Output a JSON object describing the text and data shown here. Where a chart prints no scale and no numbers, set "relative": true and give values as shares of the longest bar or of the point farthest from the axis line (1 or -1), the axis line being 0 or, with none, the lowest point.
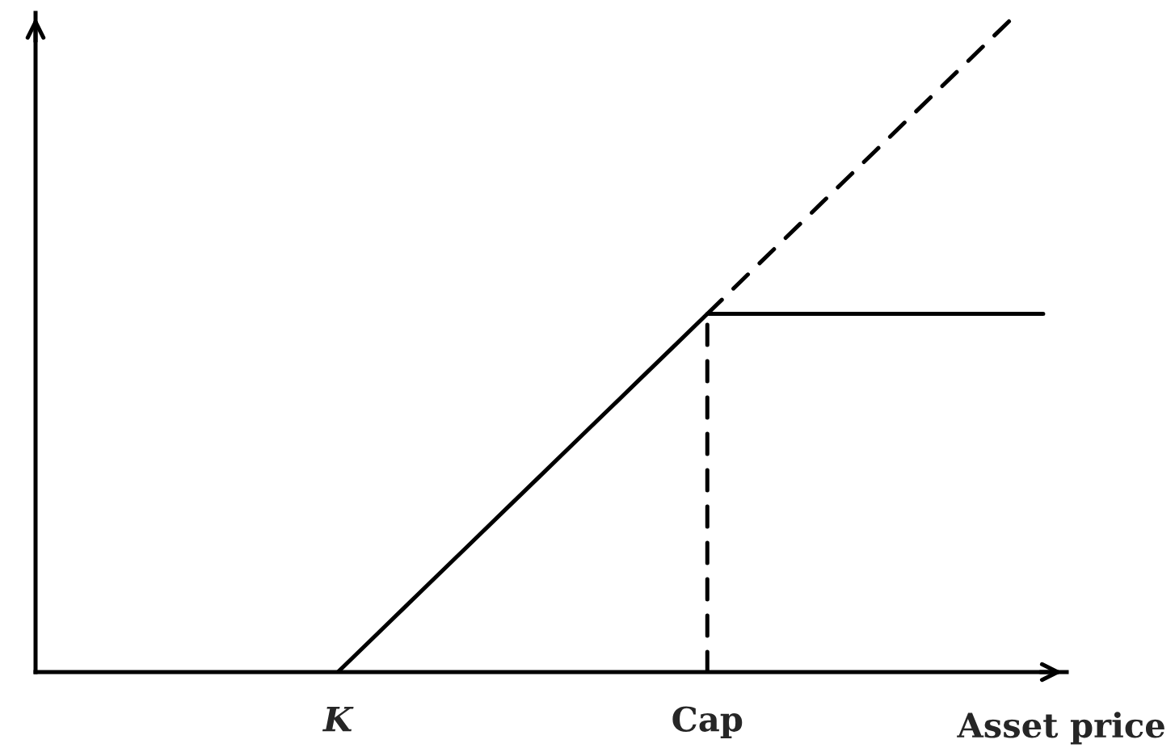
{
  "chart_data": {
    "type": "line",
    "relative": true,
    "xlabel": "Asset price",
    "tick_labels": "x",
    "categories": [
      null,
      null,
      null,
      null,
      null,
      null,
      null,
      null,
      null,
      "K",
      null,
      null,
      null,
      null,
      null,
      null,
      null,
      null,
      null,
      null,
      "Cap",
      null,
      null,
      null,
      null,
      null,
      null,
      null,
      null,
      null,
      null
    ],
    "series": [
      {
        "color": "#000000",
        "line_style": "solid",
        "values": [
          null,
          null,
          null,
          null,
          null,
          null,
          null,
          null,
          null,
          0,
          0.05,
          0.1,
          0.15,
          0.2,
          0.25,
          0.3,
          0.35,
          0.4,
          0.45,
          0.5,
          0.55,
          0.55,
          0.55,
          0.55,
          0.55,
          0.55,
          0.55,
          0.55,
          0.55,
          0.55,
          0.55
        ]
      },
      {
        "color": "#000000",
        "line_style": "dashed",
        "values": [
          null,
          null,
          null,
          null,
          null,
          null,
          null,
          null,
          null,
          null,
          null,
          null,
          null,
          null,
          null,
          null,
          null,
          null,
          null,
          null,
          0.55,
          0.6,
          0.65,
          0.7,
          0.75,
          0.8,
          0.85,
          0.9,
          0.95,
          1,
          null
        ]
      },
      {
        "color": "#000000",
        "line_style": "dashed",
        "x": [
          "Cap",
          "Cap"
        ],
        "values": [
          0,
          0.55
        ]
      }
    ]
  }
}
